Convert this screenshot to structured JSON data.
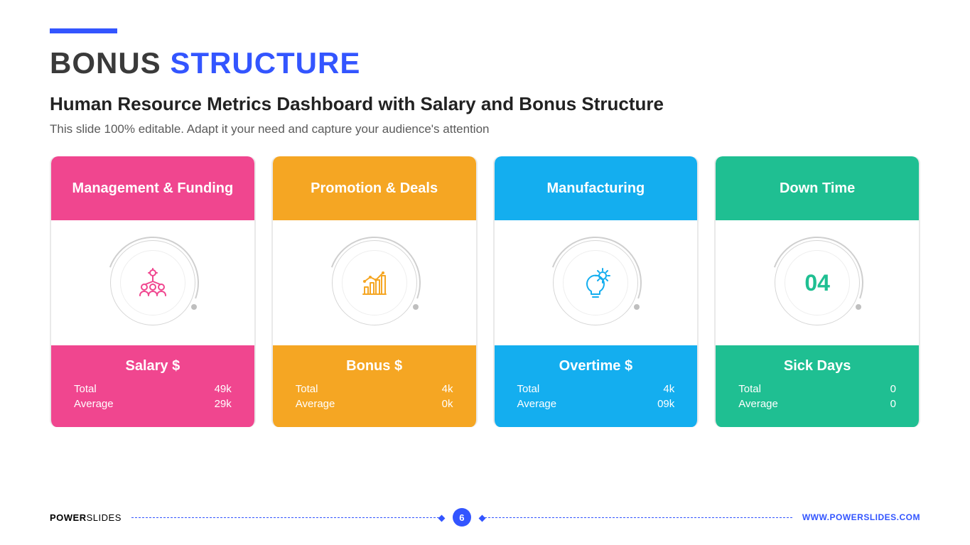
{
  "colors": {
    "accent": "#3355ff",
    "title_dark": "#3a3a3a",
    "subtitle": "#222222",
    "desc": "#5a5a5a"
  },
  "header": {
    "title_a": "BONUS",
    "title_b": "STRUCTURE",
    "subtitle": "Human Resource Metrics Dashboard with Salary and Bonus Structure",
    "desc": "This slide 100% editable. Adapt it your need and capture your audience's attention"
  },
  "cards": [
    {
      "title": "Management & Funding",
      "color": "#f0468f",
      "icon": "team-idea",
      "metric_title": "Salary $",
      "rows": [
        {
          "label": "Total",
          "value": "49k"
        },
        {
          "label": "Average",
          "value": "29k"
        }
      ]
    },
    {
      "title": "Promotion & Deals",
      "color": "#f5a623",
      "icon": "growth-chart",
      "metric_title": "Bonus $",
      "rows": [
        {
          "label": "Total",
          "value": "4k"
        },
        {
          "label": "Average",
          "value": "0k"
        }
      ]
    },
    {
      "title": "Manufacturing",
      "color": "#14aeef",
      "icon": "gears-bulb",
      "metric_title": "Overtime $",
      "rows": [
        {
          "label": "Total",
          "value": "4k"
        },
        {
          "label": "Average",
          "value": "09k"
        }
      ]
    },
    {
      "title": "Down Time",
      "color": "#1fbf92",
      "icon": "number",
      "center_text": "04",
      "metric_title": "Sick Days",
      "rows": [
        {
          "label": "Total",
          "value": "0"
        },
        {
          "label": "Average",
          "value": "0"
        }
      ]
    }
  ],
  "footer": {
    "brand_a": "POWER",
    "brand_b": "SLIDES",
    "page": "6",
    "url": "WWW.POWERSLIDES.COM"
  }
}
